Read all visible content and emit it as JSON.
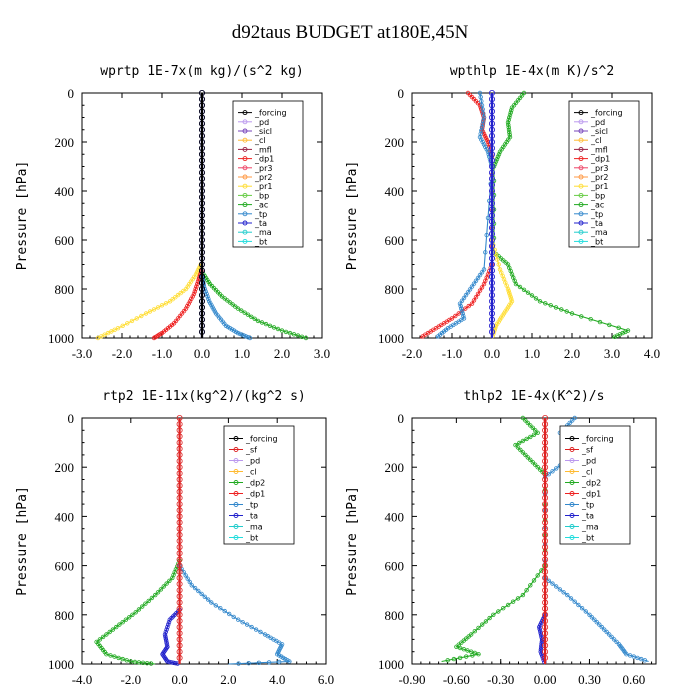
{
  "title": "d92taus  BUDGET at180E,45N",
  "colors": {
    "forcing": "#000000",
    "sf": "#dd2222",
    "pd": "#bb99ee",
    "sicl": "#7744bb",
    "cl": "#ffbb33",
    "mfl": "#992244",
    "dp1": "#ee2222",
    "dp2": "#22aa22",
    "pr3": "#ee4466",
    "pr2": "#ff9944",
    "pr1": "#ffdd33",
    "bp": "#66cc44",
    "ac": "#22aa22",
    "tp": "#3388cc",
    "ta": "#2222cc",
    "ma": "#22cccc",
    "bt": "#22dddd"
  },
  "chart_data": [
    {
      "type": "line",
      "title": "wprtp  1E-7x(m kg)/(s^2 kg)",
      "ylabel": "Pressure [hPa]",
      "xlim": [
        -3.0,
        3.0
      ],
      "ylim": [
        1000,
        0
      ],
      "xticks": [
        "-3.0",
        "-2.0",
        "-1.0",
        "0.0",
        "1.0",
        "2.0",
        "3.0"
      ],
      "yticks": [
        "0",
        "200",
        "400",
        "600",
        "800",
        "1000"
      ],
      "legend_position": "top-right",
      "legend": [
        "_forcing",
        "_pd",
        "_sicl",
        "_cl",
        "_mfl",
        "_dp1",
        "_pr3",
        "_pr2",
        "_pr1",
        "_bp",
        "_ac",
        "_tp",
        "_ta",
        "_ma",
        "_bt"
      ],
      "series": [
        {
          "name": "_pr1",
          "color_key": "pr1",
          "values": [
            [
              -2.6,
              1000
            ],
            [
              -2.1,
              960
            ],
            [
              -1.4,
              900
            ],
            [
              -0.8,
              850
            ],
            [
              -0.4,
              800
            ],
            [
              -0.15,
              740
            ],
            [
              0,
              690
            ]
          ]
        },
        {
          "name": "_dp1",
          "color_key": "dp1",
          "values": [
            [
              -1.2,
              1000
            ],
            [
              -1.0,
              980
            ],
            [
              -0.7,
              940
            ],
            [
              -0.4,
              880
            ],
            [
              -0.2,
              820
            ],
            [
              -0.08,
              760
            ],
            [
              0,
              720
            ]
          ]
        },
        {
          "name": "_ac",
          "color_key": "ac",
          "values": [
            [
              2.6,
              1000
            ],
            [
              2.0,
              970
            ],
            [
              1.4,
              930
            ],
            [
              0.9,
              880
            ],
            [
              0.5,
              830
            ],
            [
              0.2,
              780
            ],
            [
              0,
              730
            ]
          ]
        },
        {
          "name": "_tp",
          "color_key": "tp",
          "values": [
            [
              1.2,
              1000
            ],
            [
              0.9,
              980
            ],
            [
              0.6,
              950
            ],
            [
              0.35,
              900
            ],
            [
              0.18,
              850
            ],
            [
              0.05,
              790
            ],
            [
              0,
              740
            ]
          ]
        },
        {
          "name": "_ta",
          "color_key": "ta",
          "values": [
            [
              0,
              0
            ],
            [
              0,
              1000
            ]
          ]
        },
        {
          "name": "_forcing",
          "color_key": "forcing",
          "values": [
            [
              0,
              0
            ],
            [
              0,
              1000
            ]
          ]
        }
      ]
    },
    {
      "type": "line",
      "title": "wpthlp  1E-4x(m K)/s^2",
      "ylabel": "Pressure [hPa]",
      "xlim": [
        -2.0,
        4.0
      ],
      "ylim": [
        1000,
        0
      ],
      "xticks": [
        "-2.0",
        "-1.0",
        "0.0",
        "1.0",
        "2.0",
        "3.0",
        "4.0"
      ],
      "yticks": [
        "0",
        "200",
        "400",
        "600",
        "800",
        "1000"
      ],
      "legend_position": "top-right",
      "legend": [
        "_forcing",
        "_pd",
        "_sicl",
        "_cl",
        "_mfl",
        "_dp1",
        "_pr3",
        "_pr2",
        "_pr1",
        "_bp",
        "_ac",
        "_tp",
        "_ta",
        "_ma",
        "_bt"
      ],
      "series": [
        {
          "name": "_dp1",
          "color_key": "dp1",
          "values": [
            [
              -0.6,
              0
            ],
            [
              -0.3,
              50
            ],
            [
              -0.2,
              100
            ],
            [
              -0.25,
              150
            ],
            [
              -0.1,
              200
            ],
            [
              0,
              260
            ],
            [
              0,
              700
            ],
            [
              -0.2,
              780
            ],
            [
              -0.5,
              860
            ],
            [
              -1.0,
              920
            ],
            [
              -1.4,
              960
            ],
            [
              -1.8,
              1000
            ]
          ]
        },
        {
          "name": "_tp",
          "color_key": "tp",
          "values": [
            [
              -0.3,
              0
            ],
            [
              -0.2,
              100
            ],
            [
              -0.3,
              180
            ],
            [
              -0.1,
              240
            ],
            [
              0,
              300
            ],
            [
              -0.2,
              720
            ],
            [
              -0.5,
              790
            ],
            [
              -0.8,
              860
            ],
            [
              -0.7,
              920
            ],
            [
              -1.1,
              960
            ],
            [
              -1.4,
              1000
            ]
          ]
        },
        {
          "name": "_ac",
          "color_key": "ac",
          "values": [
            [
              0.8,
              0
            ],
            [
              0.5,
              60
            ],
            [
              0.4,
              120
            ],
            [
              0.45,
              180
            ],
            [
              0.2,
              240
            ],
            [
              0.05,
              300
            ],
            [
              0.05,
              650
            ],
            [
              0.4,
              700
            ],
            [
              0.6,
              780
            ],
            [
              1.2,
              850
            ],
            [
              2.0,
              900
            ],
            [
              3.4,
              970
            ],
            [
              3.0,
              1000
            ]
          ]
        },
        {
          "name": "_pr1",
          "color_key": "pr1",
          "values": [
            [
              0,
              600
            ],
            [
              0.2,
              720
            ],
            [
              0.4,
              800
            ],
            [
              0.5,
              850
            ],
            [
              0.3,
              900
            ],
            [
              0.1,
              950
            ],
            [
              0,
              1000
            ]
          ]
        },
        {
          "name": "_pd",
          "color_key": "pd",
          "values": [
            [
              0,
              0
            ],
            [
              0,
              1000
            ]
          ]
        },
        {
          "name": "_ta",
          "color_key": "ta",
          "values": [
            [
              0,
              0
            ],
            [
              0,
              1000
            ]
          ]
        }
      ]
    },
    {
      "type": "line",
      "title": "rtp2  1E-11x(kg^2)/(kg^2 s)",
      "ylabel": "Pressure [hPa]",
      "xlim": [
        -4.0,
        6.0
      ],
      "ylim": [
        1000,
        0
      ],
      "xticks": [
        "-4.0",
        "-2.0",
        "0.0",
        "2.0",
        "4.0",
        "6.0"
      ],
      "yticks": [
        "0",
        "200",
        "400",
        "600",
        "800",
        "1000"
      ],
      "legend_position": "top-right",
      "legend": [
        "_forcing",
        "_sf",
        "_pd",
        "_cl",
        "_dp2",
        "_dp1",
        "_tp",
        "_ta",
        "_ma",
        "_bt"
      ],
      "series": [
        {
          "name": "_dp1",
          "color_key": "dp2",
          "values": [
            [
              0,
              580
            ],
            [
              -0.3,
              650
            ],
            [
              -1.0,
              720
            ],
            [
              -1.8,
              790
            ],
            [
              -2.6,
              850
            ],
            [
              -3.4,
              910
            ],
            [
              -3.0,
              960
            ],
            [
              -2.0,
              990
            ],
            [
              -1.0,
              1000
            ]
          ]
        },
        {
          "name": "_tp",
          "color_key": "tp",
          "values": [
            [
              0,
              600
            ],
            [
              0.5,
              680
            ],
            [
              1.3,
              750
            ],
            [
              2.4,
              820
            ],
            [
              3.5,
              880
            ],
            [
              4.2,
              920
            ],
            [
              4.0,
              960
            ],
            [
              4.5,
              990
            ],
            [
              2.0,
              1000
            ]
          ]
        },
        {
          "name": "_ta",
          "color_key": "ta",
          "values": [
            [
              0,
              780
            ],
            [
              -0.4,
              820
            ],
            [
              -0.6,
              880
            ],
            [
              -0.5,
              930
            ],
            [
              -0.7,
              960
            ],
            [
              -0.5,
              990
            ],
            [
              0,
              1000
            ]
          ]
        },
        {
          "name": "_sf",
          "color_key": "sf",
          "values": [
            [
              0,
              0
            ],
            [
              0,
              1000
            ]
          ]
        }
      ]
    },
    {
      "type": "line",
      "title": "thlp2  1E-4x(K^2)/s",
      "ylabel": "Pressure [hPa]",
      "xlim": [
        -0.9,
        0.75
      ],
      "ylim": [
        1000,
        0
      ],
      "xticks": [
        "-0.90",
        "-0.60",
        "-0.30",
        "0.00",
        "0.30",
        "0.60"
      ],
      "yticks": [
        "0",
        "200",
        "400",
        "600",
        "800",
        "1000"
      ],
      "legend_position": "top-right",
      "legend": [
        "_forcing",
        "_sf",
        "_pd",
        "_cl",
        "_dp2",
        "_dp1",
        "_tp",
        "_ta",
        "_ma",
        "_bt"
      ],
      "series": [
        {
          "name": "_dp1",
          "color_key": "dp2",
          "values": [
            [
              -0.15,
              0
            ],
            [
              -0.05,
              60
            ],
            [
              -0.2,
              110
            ],
            [
              -0.1,
              170
            ],
            [
              0,
              230
            ],
            [
              0,
              600
            ],
            [
              -0.15,
              720
            ],
            [
              -0.35,
              800
            ],
            [
              -0.5,
              880
            ],
            [
              -0.6,
              930
            ],
            [
              -0.45,
              960
            ],
            [
              -0.7,
              990
            ]
          ]
        },
        {
          "name": "_tp",
          "color_key": "tp",
          "values": [
            [
              0.2,
              0
            ],
            [
              0.1,
              60
            ],
            [
              0.25,
              110
            ],
            [
              0.15,
              170
            ],
            [
              0,
              240
            ],
            [
              0,
              650
            ],
            [
              0.15,
              720
            ],
            [
              0.3,
              800
            ],
            [
              0.4,
              860
            ],
            [
              0.5,
              920
            ],
            [
              0.55,
              960
            ],
            [
              0.7,
              990
            ]
          ]
        },
        {
          "name": "_ta",
          "color_key": "ta",
          "values": [
            [
              0,
              800
            ],
            [
              -0.04,
              850
            ],
            [
              -0.02,
              900
            ],
            [
              -0.03,
              950
            ],
            [
              0,
              1000
            ]
          ]
        },
        {
          "name": "_sf",
          "color_key": "sf",
          "values": [
            [
              0,
              0
            ],
            [
              0,
              1000
            ]
          ]
        }
      ]
    }
  ]
}
